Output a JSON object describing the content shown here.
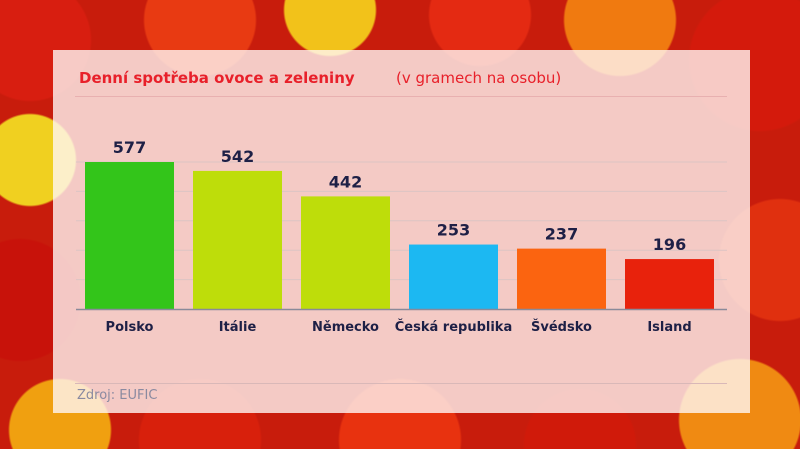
{
  "chart_data": {
    "type": "bar",
    "title": "Denní spotřeba ovoce a zeleniny",
    "subtitle": "(v gramech na osobu)",
    "categories": [
      "Polsko",
      "Itálie",
      "Německo",
      "Česká republika",
      "Švédsko",
      "Island"
    ],
    "values": [
      577,
      542,
      442,
      253,
      237,
      196
    ],
    "colors": [
      "#33c51a",
      "#bedd0a",
      "#bedd0a",
      "#1cb8f2",
      "#fb6410",
      "#e8220c"
    ],
    "ylim": [
      0,
      577
    ],
    "grid": true,
    "source": "Zdroj: EUFIC"
  }
}
